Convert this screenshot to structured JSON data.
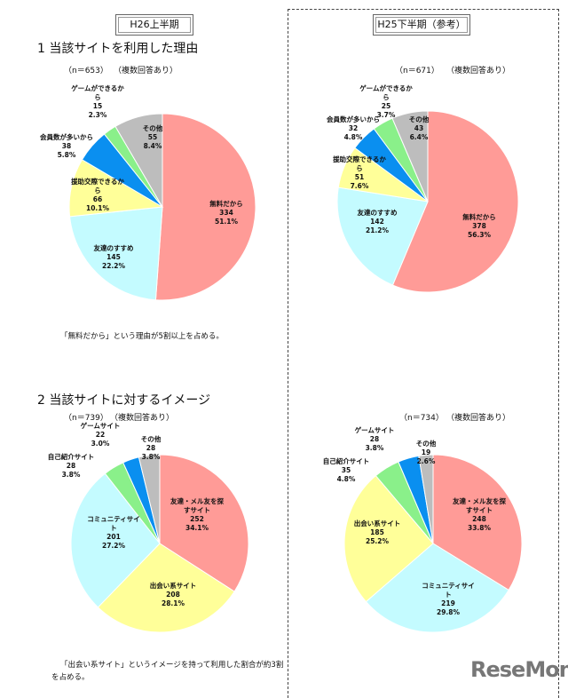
{
  "left": {
    "period": "H26上半期",
    "q1_title": "1  当該サイトを利用した理由",
    "q1_n": "（n＝653）",
    "q1_multi": "（複数回答あり）",
    "q1_note": "「無料だから」という理由が5割以上を占める。",
    "q2_title": "2  当該サイトに対するイメージ",
    "q2_n": "（n＝739）",
    "q2_multi": "（複数回答あり）",
    "q2_note": "「出会い系サイト」というイメージを持って利用した割合が約3割を占める。"
  },
  "right": {
    "period": "H25下半期（参考）",
    "q1_n": "（n＝671）",
    "q1_multi": "（複数回答あり）",
    "q2_n": "（n＝734）",
    "q2_multi": "（複数回答あり）"
  },
  "watermark": "ReseMom",
  "colors": {
    "pink": "#ff9b97",
    "cyan": "#c4fbff",
    "yellow": "#ffff99",
    "blue": "#0a8ff0",
    "green": "#8af08a",
    "gray": "#bdbdbd"
  },
  "chart_data": [
    {
      "type": "pie",
      "title": "H26上半期 当該サイトを利用した理由",
      "slices": [
        {
          "label": "無料だから",
          "value": 334,
          "pct": "51.1%",
          "color": "pink"
        },
        {
          "label": "友達のすすめ",
          "value": 145,
          "pct": "22.2%",
          "color": "cyan"
        },
        {
          "label": "援助交際できるから",
          "value": 66,
          "pct": "10.1%",
          "color": "yellow"
        },
        {
          "label": "会員数が多いから",
          "value": 38,
          "pct": "5.8%",
          "color": "blue"
        },
        {
          "label": "ゲームができるから",
          "value": 15,
          "pct": "2.3%",
          "color": "green"
        },
        {
          "label": "その他",
          "value": 55,
          "pct": "8.4%",
          "color": "gray"
        }
      ]
    },
    {
      "type": "pie",
      "title": "H25下半期 当該サイトを利用した理由",
      "slices": [
        {
          "label": "無料だから",
          "value": 378,
          "pct": "56.3%",
          "color": "pink"
        },
        {
          "label": "友達のすすめ",
          "value": 142,
          "pct": "21.2%",
          "color": "cyan"
        },
        {
          "label": "援助交際できるから",
          "value": 51,
          "pct": "7.6%",
          "color": "yellow"
        },
        {
          "label": "会員数が多いから",
          "value": 32,
          "pct": "4.8%",
          "color": "blue"
        },
        {
          "label": "ゲームができるから",
          "value": 25,
          "pct": "3.7%",
          "color": "green"
        },
        {
          "label": "その他",
          "value": 43,
          "pct": "6.4%",
          "color": "gray"
        }
      ]
    },
    {
      "type": "pie",
      "title": "H26上半期 当該サイトに対するイメージ",
      "slices": [
        {
          "label": "友達・メル友を探すサイト",
          "value": 252,
          "pct": "34.1%",
          "color": "pink"
        },
        {
          "label": "出会い系サイト",
          "value": 208,
          "pct": "28.1%",
          "color": "yellow"
        },
        {
          "label": "コミュニティサイト",
          "value": 201,
          "pct": "27.2%",
          "color": "cyan"
        },
        {
          "label": "自己紹介サイト",
          "value": 28,
          "pct": "3.8%",
          "color": "green"
        },
        {
          "label": "ゲームサイト",
          "value": 22,
          "pct": "3.0%",
          "color": "blue"
        },
        {
          "label": "その他",
          "value": 28,
          "pct": "3.8%",
          "color": "gray"
        }
      ]
    },
    {
      "type": "pie",
      "title": "H25下半期 当該サイトに対するイメージ",
      "slices": [
        {
          "label": "友達・メル友を探すサイト",
          "value": 248,
          "pct": "33.8%",
          "color": "pink"
        },
        {
          "label": "コミュニティサイト",
          "value": 219,
          "pct": "29.8%",
          "color": "cyan"
        },
        {
          "label": "出会い系サイト",
          "value": 185,
          "pct": "25.2%",
          "color": "yellow"
        },
        {
          "label": "自己紹介サイト",
          "value": 35,
          "pct": "4.8%",
          "color": "green"
        },
        {
          "label": "ゲームサイト",
          "value": 28,
          "pct": "3.8%",
          "color": "blue"
        },
        {
          "label": "その他",
          "value": 19,
          "pct": "2.6%",
          "color": "gray"
        }
      ]
    }
  ]
}
